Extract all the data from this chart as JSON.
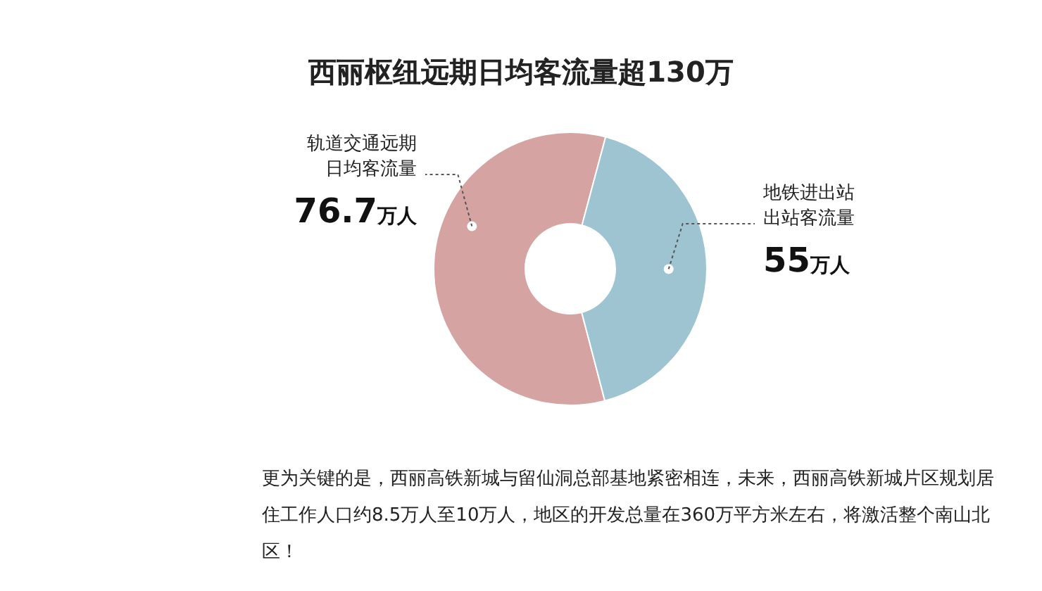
{
  "chart_data": {
    "type": "donut",
    "title": "西丽枢纽远期日均客流量超130万",
    "categories": [
      "轨道交通远期日均客流量",
      "地铁进出站出站客流量"
    ],
    "values": [
      76.7,
      55
    ],
    "colors": [
      "#d4a3a2",
      "#9fc4d1"
    ],
    "value_labels": [
      "76.7万人",
      "55万人"
    ],
    "legend": false,
    "annotations": [
      "更为关键的是，西丽高铁新城与留仙洞总部基地紧密相连，未来，西丽高铁新城片区规划居住工作人口约8.5万人至10万人，地区的开发总量在360万平方米左右，将激活整个南山北区！"
    ]
  }
}
